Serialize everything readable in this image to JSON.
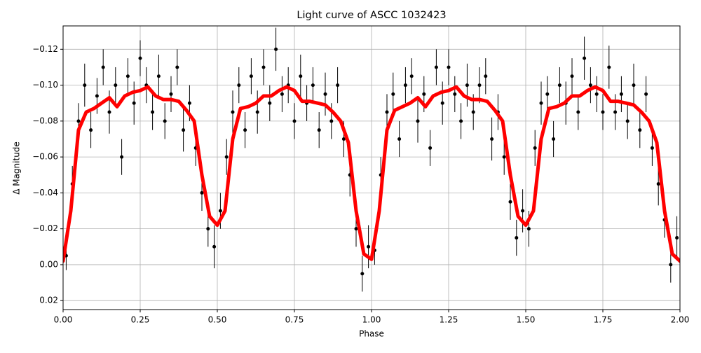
{
  "chart_data": {
    "type": "scatter",
    "title": "Light curve of ASCC 1032423",
    "x_label": "Phase",
    "y_label": "Δ Magnitude",
    "xlim": [
      0,
      2
    ],
    "ylim": [
      -0.133,
      0.025
    ],
    "y_inverted": true,
    "grid": true,
    "xticks": [
      {
        "value": 0,
        "label": "0.00"
      },
      0.25,
      {
        "value": 0.5,
        "label": "0.50"
      },
      0.75,
      {
        "value": 1,
        "label": "1.00"
      },
      1.25,
      {
        "value": 1.5,
        "label": "1.50"
      },
      1.75,
      {
        "value": 2,
        "label": "2.00"
      }
    ],
    "yticks": [
      {
        "value": -0.12,
        "label": "−0.12"
      },
      {
        "value": -0.1,
        "label": "−0.10"
      },
      {
        "value": -0.08,
        "label": "−0.08"
      },
      {
        "value": -0.06,
        "label": "−0.06"
      },
      {
        "value": -0.04,
        "label": "−0.04"
      },
      {
        "value": -0.02,
        "label": "−0.02"
      },
      {
        "value": 0,
        "label": "0.00"
      },
      0.02
    ],
    "series": [
      {
        "type": "errorbar",
        "color": "#000000",
        "x": [
          0.01,
          0.03,
          0.05,
          0.07,
          0.09,
          0.11,
          0.13,
          0.15,
          0.17,
          0.19,
          0.21,
          0.23,
          0.25,
          0.27,
          0.29,
          0.31,
          0.33,
          0.35,
          0.37,
          0.39,
          0.41,
          0.43,
          0.45,
          0.47,
          0.49,
          0.51,
          0.53,
          0.55,
          0.57,
          0.59,
          0.61,
          0.63,
          0.65,
          0.67,
          0.69,
          0.71,
          0.73,
          0.75,
          0.77,
          0.79,
          0.81,
          0.83,
          0.85,
          0.87,
          0.89,
          0.91,
          0.93,
          0.95,
          0.97,
          0.99,
          1.01,
          1.03,
          1.05,
          1.07,
          1.09,
          1.11,
          1.13,
          1.15,
          1.17,
          1.19,
          1.21,
          1.23,
          1.25,
          1.27,
          1.29,
          1.31,
          1.33,
          1.35,
          1.37,
          1.39,
          1.41,
          1.43,
          1.45,
          1.47,
          1.49,
          1.51,
          1.53,
          1.55,
          1.57,
          1.59,
          1.61,
          1.63,
          1.65,
          1.67,
          1.69,
          1.71,
          1.73,
          1.75,
          1.77,
          1.79,
          1.81,
          1.83,
          1.85,
          1.87,
          1.89,
          1.91,
          1.93,
          1.95,
          1.97,
          1.99
        ],
        "values": [
          -0.005,
          -0.045,
          -0.08,
          -0.1,
          -0.075,
          -0.094,
          -0.11,
          -0.085,
          -0.1,
          -0.06,
          -0.105,
          -0.09,
          -0.115,
          -0.1,
          -0.085,
          -0.105,
          -0.08,
          -0.095,
          -0.11,
          -0.075,
          -0.09,
          -0.065,
          -0.04,
          -0.02,
          -0.01,
          -0.03,
          -0.06,
          -0.085,
          -0.1,
          -0.075,
          -0.105,
          -0.085,
          -0.11,
          -0.09,
          -0.12,
          -0.095,
          -0.1,
          -0.08,
          -0.105,
          -0.09,
          -0.1,
          -0.075,
          -0.095,
          -0.08,
          -0.1,
          -0.07,
          -0.05,
          -0.02,
          0.005,
          -0.01,
          -0.008,
          -0.05,
          -0.085,
          -0.095,
          -0.07,
          -0.1,
          -0.105,
          -0.08,
          -0.095,
          -0.065,
          -0.11,
          -0.09,
          -0.11,
          -0.095,
          -0.08,
          -0.1,
          -0.085,
          -0.1,
          -0.105,
          -0.07,
          -0.085,
          -0.06,
          -0.035,
          -0.015,
          -0.03,
          -0.02,
          -0.065,
          -0.09,
          -0.095,
          -0.07,
          -0.1,
          -0.09,
          -0.105,
          -0.085,
          -0.115,
          -0.1,
          -0.095,
          -0.085,
          -0.11,
          -0.085,
          -0.095,
          -0.08,
          -0.1,
          -0.075,
          -0.095,
          -0.065,
          -0.045,
          -0.025,
          0.0,
          -0.015
        ],
        "errors": [
          0.008,
          0.01,
          0.01,
          0.012,
          0.01,
          0.01,
          0.01,
          0.012,
          0.01,
          0.01,
          0.01,
          0.012,
          0.01,
          0.01,
          0.01,
          0.012,
          0.01,
          0.01,
          0.01,
          0.012,
          0.01,
          0.01,
          0.01,
          0.01,
          0.012,
          0.01,
          0.01,
          0.012,
          0.01,
          0.01,
          0.01,
          0.012,
          0.01,
          0.01,
          0.012,
          0.01,
          0.01,
          0.01,
          0.012,
          0.01,
          0.01,
          0.01,
          0.012,
          0.01,
          0.01,
          0.01,
          0.012,
          0.01,
          0.01,
          0.012,
          0.008,
          0.01,
          0.01,
          0.012,
          0.01,
          0.01,
          0.01,
          0.012,
          0.01,
          0.01,
          0.01,
          0.012,
          0.01,
          0.01,
          0.01,
          0.012,
          0.01,
          0.01,
          0.01,
          0.012,
          0.01,
          0.01,
          0.01,
          0.01,
          0.012,
          0.01,
          0.01,
          0.012,
          0.01,
          0.01,
          0.01,
          0.012,
          0.01,
          0.01,
          0.012,
          0.01,
          0.01,
          0.01,
          0.012,
          0.01,
          0.01,
          0.01,
          0.012,
          0.01,
          0.01,
          0.01,
          0.012,
          0.01,
          0.01,
          0.012
        ]
      },
      {
        "type": "line",
        "color": "#ff0000",
        "x": [
          0,
          0.025,
          0.05,
          0.075,
          0.1,
          0.125,
          0.15,
          0.175,
          0.2,
          0.225,
          0.25,
          0.275,
          0.3,
          0.325,
          0.35,
          0.375,
          0.4,
          0.425,
          0.45,
          0.475,
          0.5,
          0.525,
          0.55,
          0.575,
          0.6,
          0.625,
          0.65,
          0.675,
          0.7,
          0.725,
          0.75,
          0.775,
          0.8,
          0.825,
          0.85,
          0.875,
          0.9,
          0.925,
          0.95,
          0.975,
          1,
          1.025,
          1.05,
          1.075,
          1.1,
          1.125,
          1.15,
          1.175,
          1.2,
          1.225,
          1.25,
          1.275,
          1.3,
          1.325,
          1.35,
          1.375,
          1.4,
          1.425,
          1.45,
          1.475,
          1.5,
          1.525,
          1.55,
          1.575,
          1.6,
          1.625,
          1.65,
          1.675,
          1.7,
          1.725,
          1.75,
          1.775,
          1.8,
          1.825,
          1.85,
          1.875,
          1.9,
          1.925,
          1.95,
          1.975,
          2
        ],
        "values": [
          -0.002,
          -0.03,
          -0.075,
          -0.085,
          -0.087,
          -0.09,
          -0.093,
          -0.088,
          -0.094,
          -0.096,
          -0.097,
          -0.099,
          -0.094,
          -0.092,
          -0.092,
          -0.091,
          -0.086,
          -0.08,
          -0.05,
          -0.027,
          -0.022,
          -0.03,
          -0.07,
          -0.087,
          -0.088,
          -0.09,
          -0.094,
          -0.094,
          -0.097,
          -0.099,
          -0.097,
          -0.091,
          -0.091,
          -0.09,
          -0.089,
          -0.085,
          -0.08,
          -0.068,
          -0.03,
          -0.006,
          -0.003,
          -0.03,
          -0.075,
          -0.086,
          -0.088,
          -0.09,
          -0.093,
          -0.088,
          -0.094,
          -0.096,
          -0.097,
          -0.099,
          -0.094,
          -0.092,
          -0.092,
          -0.091,
          -0.086,
          -0.08,
          -0.05,
          -0.027,
          -0.022,
          -0.03,
          -0.07,
          -0.087,
          -0.088,
          -0.09,
          -0.094,
          -0.094,
          -0.097,
          -0.099,
          -0.097,
          -0.091,
          -0.091,
          -0.09,
          -0.089,
          -0.085,
          -0.08,
          -0.068,
          -0.03,
          -0.006,
          -0.002
        ]
      }
    ]
  }
}
